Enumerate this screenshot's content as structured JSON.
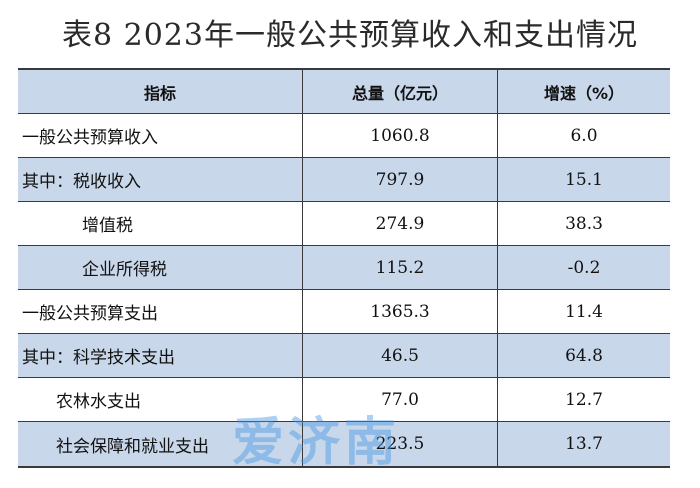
{
  "title": "表8  2023年一般公共预算收入和支出情况",
  "headers": [
    "指标",
    "总量（亿元）",
    "增速（%）"
  ],
  "rows": [
    {
      "label": "一般公共预算收入",
      "total": "1060.8",
      "growth": "6.0"
    },
    {
      "label": "其中：税收收入",
      "total": "797.9",
      "growth": "15.1"
    },
    {
      "label": "增值税",
      "total": "274.9",
      "growth": "38.3"
    },
    {
      "label": "企业所得税",
      "total": "115.2",
      "growth": "-0.2"
    },
    {
      "label": "一般公共预算支出",
      "total": "1365.3",
      "growth": "11.4"
    },
    {
      "label": "其中：科学技术支出",
      "total": "46.5",
      "growth": "64.8"
    },
    {
      "label": "农林水支出",
      "total": "77.0",
      "growth": "12.7"
    },
    {
      "label": "社会保障和就业支出",
      "total": "223.5",
      "growth": "13.7"
    }
  ],
  "watermark": "爱济南",
  "colors": {
    "row_shade": "#c9d7ea",
    "watermark": "#4696e6"
  }
}
